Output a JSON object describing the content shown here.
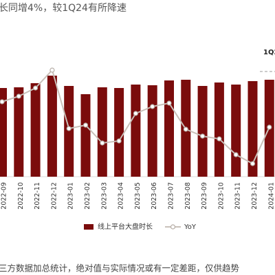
{
  "chart_data": {
    "type": "bar",
    "title": "长同增4%，较1Q24有所降速",
    "annotation": "1Q2",
    "note": "三方数据加总统计，绝对值与实际情况或有一定差距，仅供趋势",
    "categories": [
      "2022-09",
      "2022-10",
      "2022-11",
      "2022-12",
      "2023-01",
      "2023-02",
      "2023-03",
      "2023-04",
      "2023-05",
      "2023-06",
      "2023-07",
      "2023-08",
      "2023-09",
      "2023-10",
      "2023-11",
      "2023-12",
      "2024-01"
    ],
    "series": [
      {
        "name": "线上平台大盘时长",
        "type": "bar",
        "color": "#7b0c0c",
        "values": [
          129,
          130,
          136,
          147,
          132,
          120,
          130,
          129,
          134,
          133,
          140,
          141,
          132,
          137,
          134,
          139,
          141
        ]
      },
      {
        "name": "YoY",
        "type": "line",
        "axis": "y2",
        "color": "#c9c0b9",
        "values": [
          109,
          117,
          129,
          155,
          70,
          75,
          49,
          52,
          92,
          102,
          107,
          69,
          59,
          55,
          32,
          19,
          72
        ]
      }
    ],
    "ylim": [
      0,
      160
    ],
    "y2lim": [
      0,
      160
    ]
  }
}
